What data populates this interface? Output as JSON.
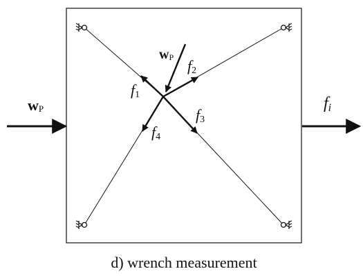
{
  "diagram": {
    "caption": "d) wrench measurement",
    "input_wrench_symbol": "w",
    "input_wrench_subscript": "P",
    "applied_wrench_symbol": "w",
    "applied_wrench_subscript": "P",
    "output_force_symbol": "f",
    "output_force_subscript": "i",
    "forces": [
      {
        "symbol": "f",
        "subscript": "1"
      },
      {
        "symbol": "f",
        "subscript": "2"
      },
      {
        "symbol": "f",
        "subscript": "3"
      },
      {
        "symbol": "f",
        "subscript": "4"
      }
    ],
    "line_color": "#111111"
  }
}
